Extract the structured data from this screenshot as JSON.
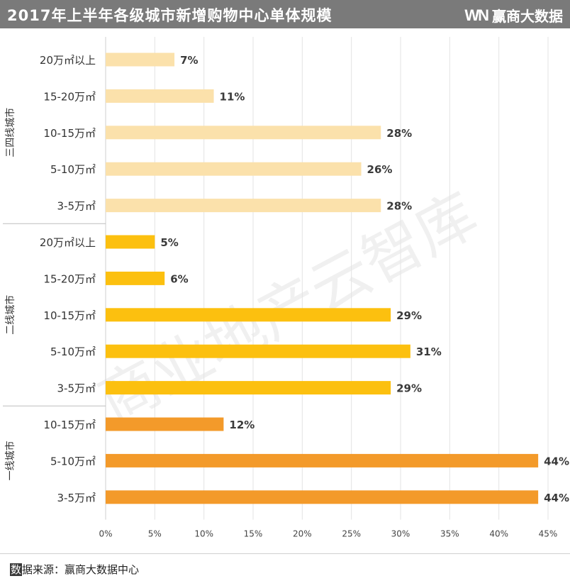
{
  "header": {
    "title": "2017年上半年各级城市新增购物中心单体规模",
    "brand_logo": "WN",
    "brand_name": "赢商大数据"
  },
  "watermark": "商业地产云智库",
  "footer": {
    "source_first_char": "数",
    "source_rest": "据来源：赢商大数据中心"
  },
  "colors": {
    "tier3": "#fbe1ab",
    "tier2": "#fcc00f",
    "tier1": "#f39a2a",
    "header_bg": "#7a7a7a"
  },
  "chart_data": {
    "type": "bar",
    "orientation": "horizontal",
    "xlim": [
      0,
      45
    ],
    "x_ticks": [
      "0%",
      "5%",
      "10%",
      "15%",
      "20%",
      "25%",
      "30%",
      "35%",
      "40%",
      "45%"
    ],
    "value_suffix": "%",
    "grid": true,
    "groups": [
      {
        "name": "三四线城市",
        "color": "#fbe1ab",
        "categories": [
          "20万㎡以上",
          "15-20万㎡",
          "10-15万㎡",
          "5-10万㎡",
          "3-5万㎡"
        ],
        "values": [
          7,
          11,
          28,
          26,
          28
        ]
      },
      {
        "name": "二线城市",
        "color": "#fcc00f",
        "categories": [
          "20万㎡以上",
          "15-20万㎡",
          "10-15万㎡",
          "5-10万㎡",
          "3-5万㎡"
        ],
        "values": [
          5,
          6,
          29,
          31,
          29
        ]
      },
      {
        "name": "一线城市",
        "color": "#f39a2a",
        "categories": [
          "10-15万㎡",
          "5-10万㎡",
          "3-5万㎡"
        ],
        "values": [
          12,
          44,
          44
        ]
      }
    ]
  }
}
